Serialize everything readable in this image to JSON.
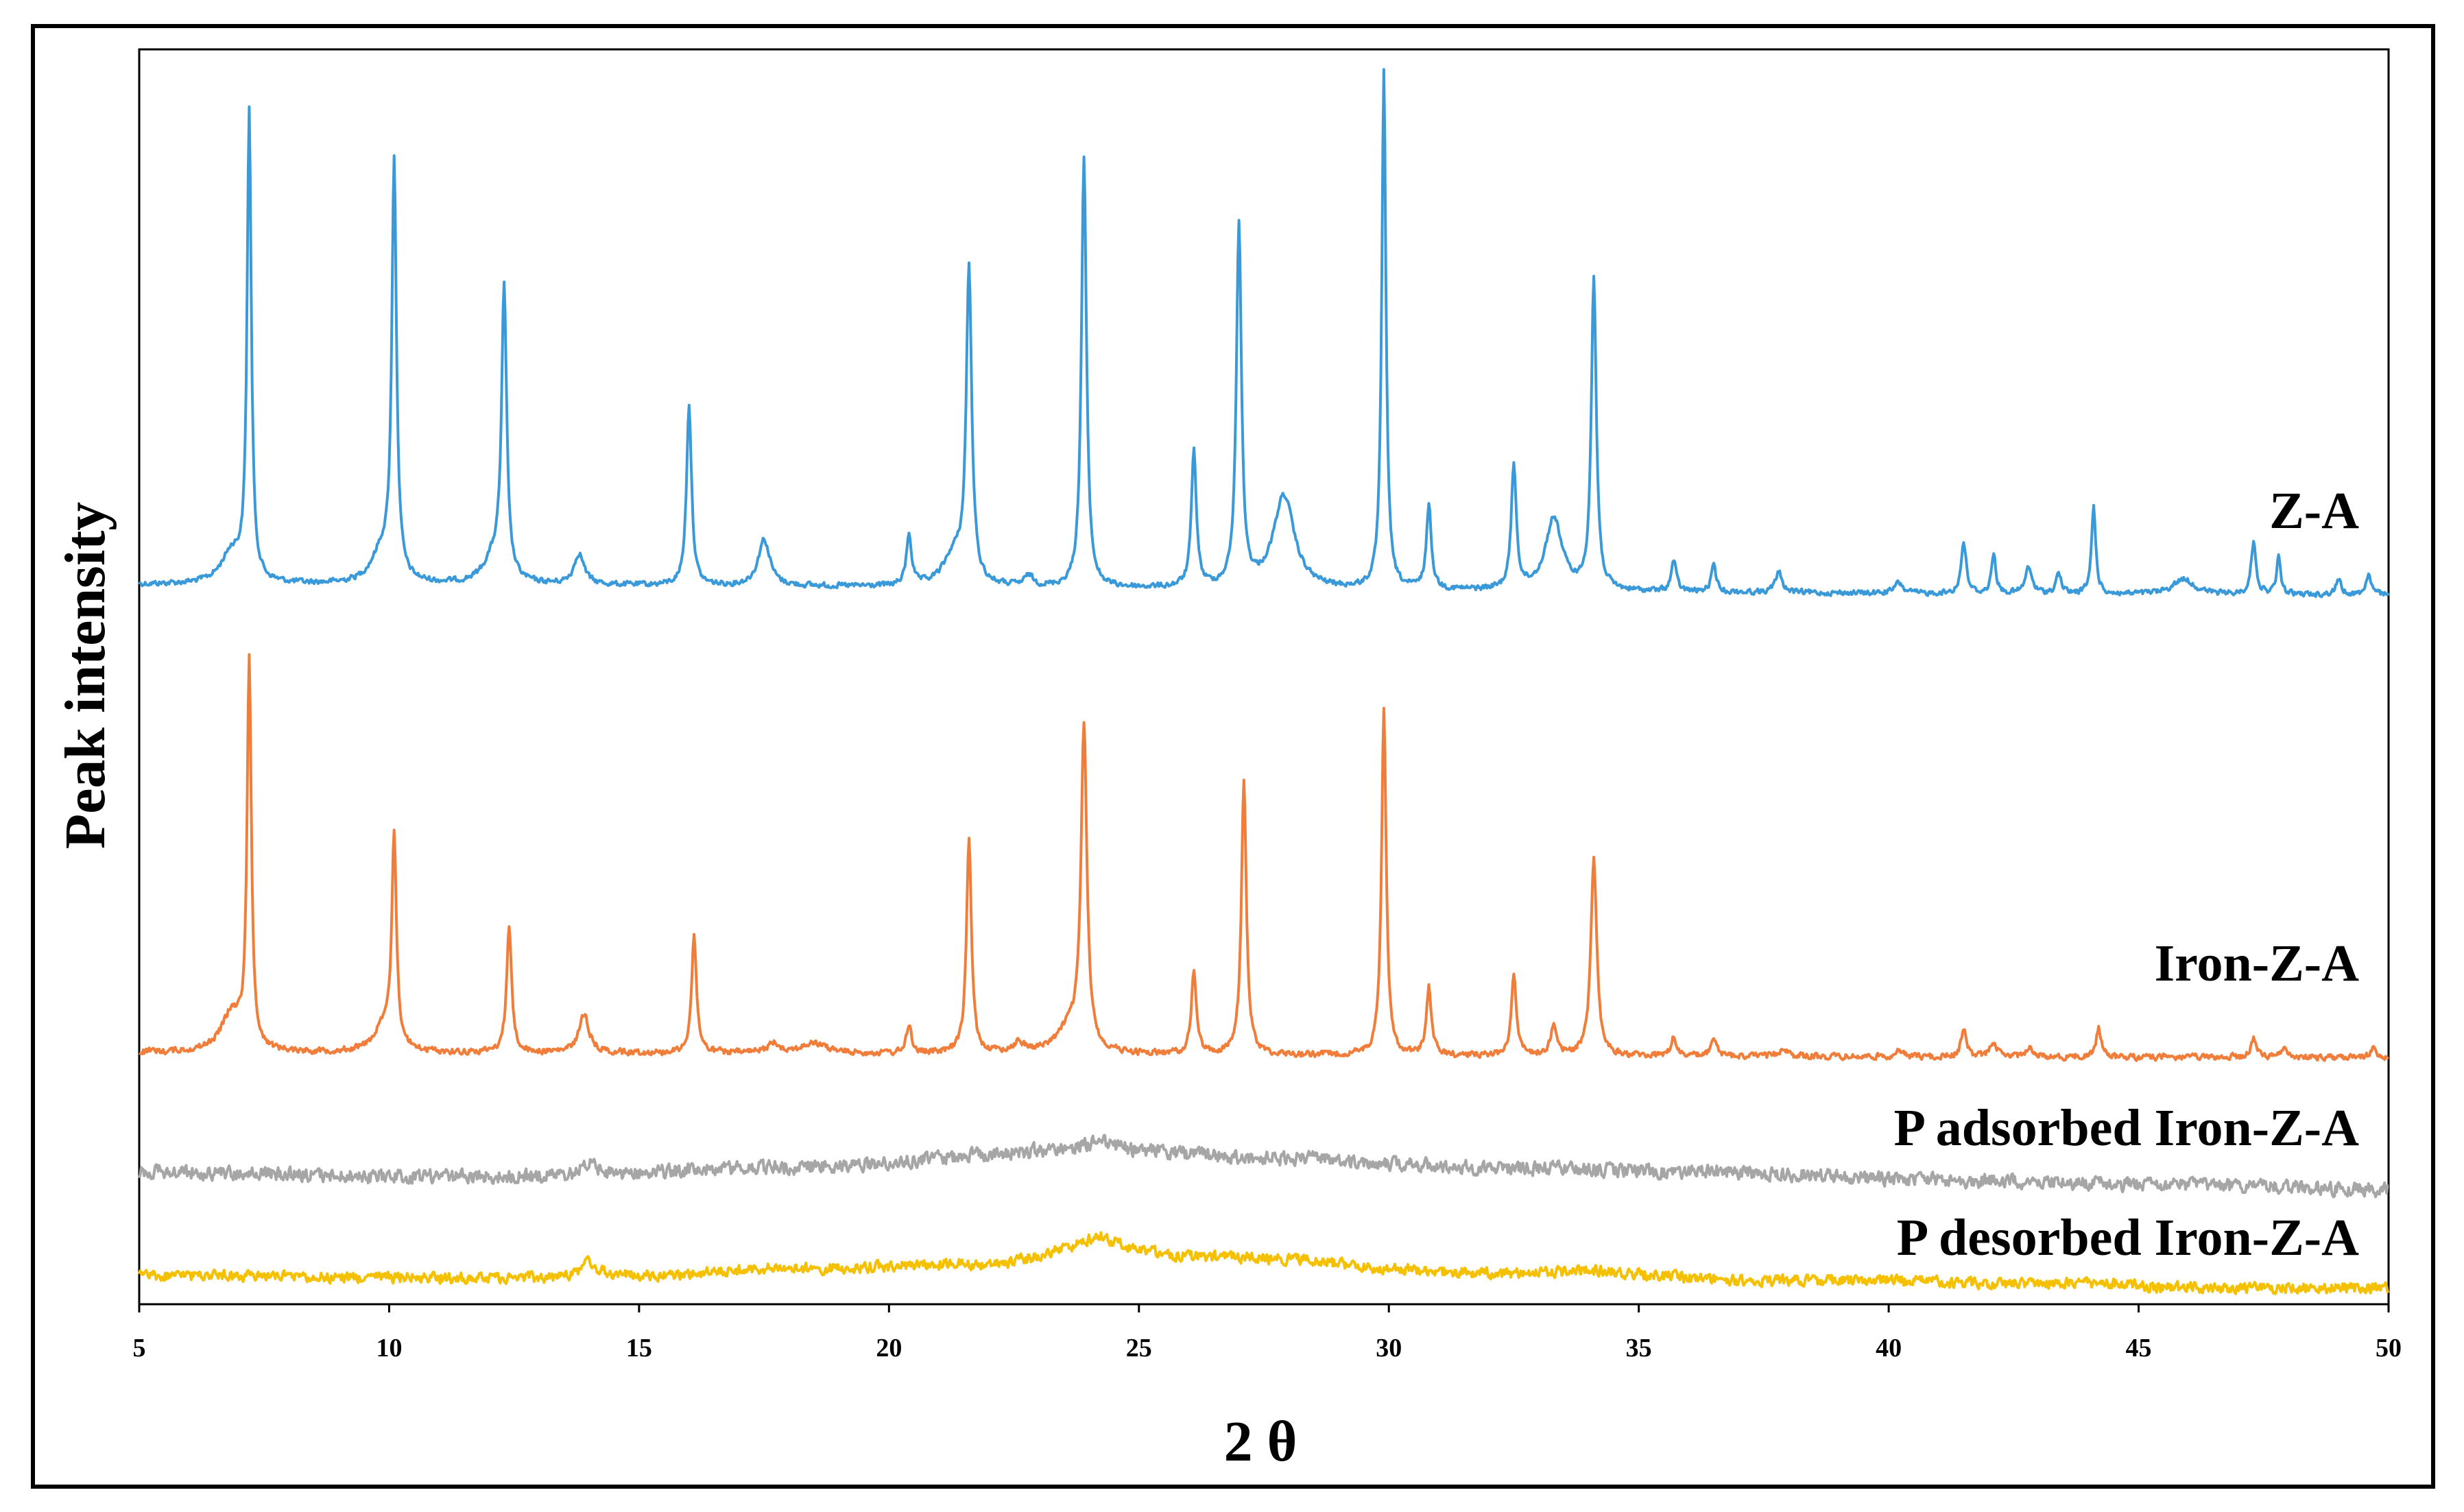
{
  "chart_data": {
    "type": "line",
    "title": "",
    "xlabel": "2 θ",
    "ylabel": "Peak intensity",
    "xlim": [
      5,
      50
    ],
    "x_ticks": [
      5,
      10,
      15,
      20,
      25,
      30,
      35,
      40,
      45,
      50
    ],
    "y_ticks_shown": false,
    "grid": false,
    "legend": "none",
    "y_scale": "arbitrary intensity (offset traces), baseline ~0, tallest peak ~100",
    "series": [
      {
        "name": "Z-A",
        "color": "#3a9ad9",
        "offset": 3,
        "base_points": [
          [
            5,
            0
          ],
          [
            50,
            -2
          ]
        ],
        "peaks": [
          [
            6.85,
            6,
            0.25
          ],
          [
            7.2,
            90,
            0.05
          ],
          [
            10.1,
            80,
            0.055
          ],
          [
            9.85,
            6,
            0.25
          ],
          [
            12.3,
            55,
            0.06
          ],
          [
            12.1,
            5,
            0.25
          ],
          [
            13.8,
            6,
            0.12
          ],
          [
            16.0,
            35,
            0.06
          ],
          [
            17.5,
            9,
            0.14
          ],
          [
            20.4,
            10,
            0.06
          ],
          [
            21.6,
            60,
            0.065
          ],
          [
            21.3,
            6,
            0.25
          ],
          [
            22.8,
            2,
            0.1
          ],
          [
            23.9,
            83,
            0.06
          ],
          [
            26.1,
            26,
            0.06
          ],
          [
            27.0,
            70,
            0.06
          ],
          [
            27.9,
            18,
            0.25
          ],
          [
            29.9,
            100,
            0.05
          ],
          [
            30.8,
            16,
            0.06
          ],
          [
            32.5,
            24,
            0.06
          ],
          [
            33.3,
            14,
            0.2
          ],
          [
            34.1,
            60,
            0.06
          ],
          [
            35.7,
            6,
            0.06
          ],
          [
            36.5,
            5,
            0.06
          ],
          [
            37.8,
            4,
            0.08
          ],
          [
            40.2,
            2,
            0.1
          ],
          [
            41.5,
            10,
            0.06
          ],
          [
            42.1,
            8,
            0.05
          ],
          [
            42.8,
            5,
            0.08
          ],
          [
            43.4,
            4,
            0.06
          ],
          [
            44.1,
            17,
            0.05
          ],
          [
            45.9,
            3,
            0.25
          ],
          [
            47.3,
            10,
            0.06
          ],
          [
            47.8,
            7,
            0.05
          ],
          [
            49.0,
            3,
            0.06
          ],
          [
            49.6,
            4,
            0.06
          ]
        ]
      },
      {
        "name": "Iron-Z-A",
        "color": "#f07d3a",
        "offset": 0,
        "base_points": [
          [
            5,
            0
          ],
          [
            50,
            -1
          ]
        ],
        "peaks": [
          [
            6.85,
            8,
            0.25
          ],
          [
            7.2,
            80,
            0.05
          ],
          [
            10.1,
            43,
            0.055
          ],
          [
            9.9,
            5,
            0.25
          ],
          [
            12.4,
            26,
            0.06
          ],
          [
            13.9,
            8,
            0.12
          ],
          [
            16.1,
            24,
            0.06
          ],
          [
            17.7,
            2,
            0.15
          ],
          [
            18.5,
            2,
            0.3
          ],
          [
            20.4,
            6,
            0.06
          ],
          [
            21.6,
            44,
            0.06
          ],
          [
            22.6,
            2,
            0.15
          ],
          [
            23.9,
            66,
            0.07
          ],
          [
            23.6,
            5,
            0.3
          ],
          [
            26.1,
            17,
            0.06
          ],
          [
            27.1,
            56,
            0.06
          ],
          [
            29.9,
            72,
            0.055
          ],
          [
            30.8,
            14,
            0.06
          ],
          [
            32.5,
            17,
            0.06
          ],
          [
            33.3,
            6,
            0.08
          ],
          [
            34.1,
            41,
            0.07
          ],
          [
            35.7,
            4,
            0.06
          ],
          [
            36.5,
            3,
            0.08
          ],
          [
            37.9,
            2,
            0.08
          ],
          [
            40.2,
            1,
            0.1
          ],
          [
            41.5,
            6,
            0.06
          ],
          [
            42.1,
            3,
            0.08
          ],
          [
            42.8,
            2,
            0.08
          ],
          [
            44.2,
            6,
            0.06
          ],
          [
            47.3,
            4,
            0.06
          ],
          [
            47.9,
            2,
            0.06
          ],
          [
            49.7,
            2,
            0.06
          ]
        ]
      },
      {
        "name": "P adsorbed Iron-Z-A",
        "color": "#a6a6a6",
        "offset": 0,
        "base_points": [
          [
            5,
            4
          ],
          [
            10,
            3
          ],
          [
            13,
            3
          ],
          [
            18,
            5
          ],
          [
            24,
            9
          ],
          [
            28,
            7
          ],
          [
            32,
            5
          ],
          [
            36,
            4
          ],
          [
            42,
            2
          ],
          [
            46,
            1
          ],
          [
            50,
            0
          ]
        ],
        "peaks": [
          [
            14.0,
            2.5,
            0.2
          ],
          [
            24.2,
            2,
            0.3
          ]
        ]
      },
      {
        "name": "P desorbed Iron-Z-A",
        "color": "#f5c000",
        "offset": 0,
        "base_points": [
          [
            5,
            3.5
          ],
          [
            13,
            3
          ],
          [
            15,
            3.5
          ],
          [
            18,
            5
          ],
          [
            22,
            6
          ],
          [
            24.2,
            10
          ],
          [
            26,
            7.5
          ],
          [
            28,
            7
          ],
          [
            30,
            5
          ],
          [
            32,
            4
          ],
          [
            34,
            4.5
          ],
          [
            37,
            2.5
          ],
          [
            40,
            2.5
          ],
          [
            42,
            2
          ],
          [
            44,
            2
          ],
          [
            46,
            1
          ],
          [
            50,
            1
          ]
        ],
        "peaks": [
          [
            14.0,
            3,
            0.2
          ],
          [
            24.2,
            2,
            0.25
          ]
        ]
      }
    ]
  }
}
